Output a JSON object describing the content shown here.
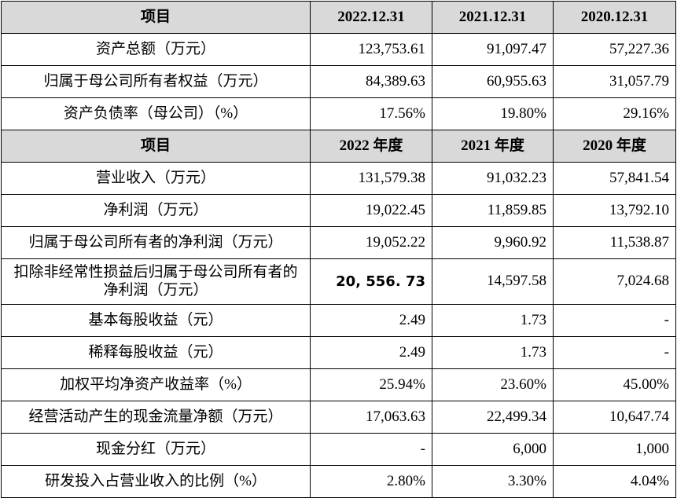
{
  "balance_header": [
    "项目",
    "2022.12.31",
    "2021.12.31",
    "2020.12.31"
  ],
  "balance_rows": [
    {
      "label": "资产总额（万元）",
      "values": [
        "123,753.61",
        "91,097.47",
        "57,227.36"
      ]
    },
    {
      "label": "归属于母公司所有者权益（万元）",
      "values": [
        "84,389.63",
        "60,955.63",
        "31,057.79"
      ]
    },
    {
      "label": "资产负债率（母公司）（%）",
      "values": [
        "17.56%",
        "19.80%",
        "29.16%"
      ]
    }
  ],
  "income_header": [
    "项目",
    "2022 年度",
    "2021 年度",
    "2020 年度"
  ],
  "income_rows": [
    {
      "label": "营业收入（万元）",
      "values": [
        "131,579.38",
        "91,032.23",
        "57,841.54"
      ]
    },
    {
      "label": "净利润（万元）",
      "values": [
        "19,022.45",
        "11,859.85",
        "13,792.10"
      ]
    },
    {
      "label": "归属于母公司所有者的净利润（万元）",
      "values": [
        "19,052.22",
        "9,960.92",
        "11,538.87"
      ]
    },
    {
      "label": "扣除非经常性损益后归属于母公司所有者的净利润（万元）",
      "values": [
        "20, 556. 73",
        "14,597.58",
        "7,024.68"
      ]
    },
    {
      "label": "基本每股收益（元）",
      "values": [
        "2.49",
        "1.73",
        "-"
      ]
    },
    {
      "label": "稀释每股收益（元）",
      "values": [
        "2.49",
        "1.73",
        "-"
      ]
    },
    {
      "label": "加权平均净资产收益率（%）",
      "values": [
        "25.94%",
        "23.60%",
        "45.00%"
      ]
    },
    {
      "label": "经营活动产生的现金流量净额（万元）",
      "values": [
        "17,063.63",
        "22,499.34",
        "10,647.74"
      ]
    },
    {
      "label": "现金分红（万元）",
      "values": [
        "-",
        "6,000",
        "1,000"
      ]
    },
    {
      "label": "研发投入占营业收入的比例（%）",
      "values": [
        "2.80%",
        "3.30%",
        "4.04%"
      ]
    }
  ]
}
